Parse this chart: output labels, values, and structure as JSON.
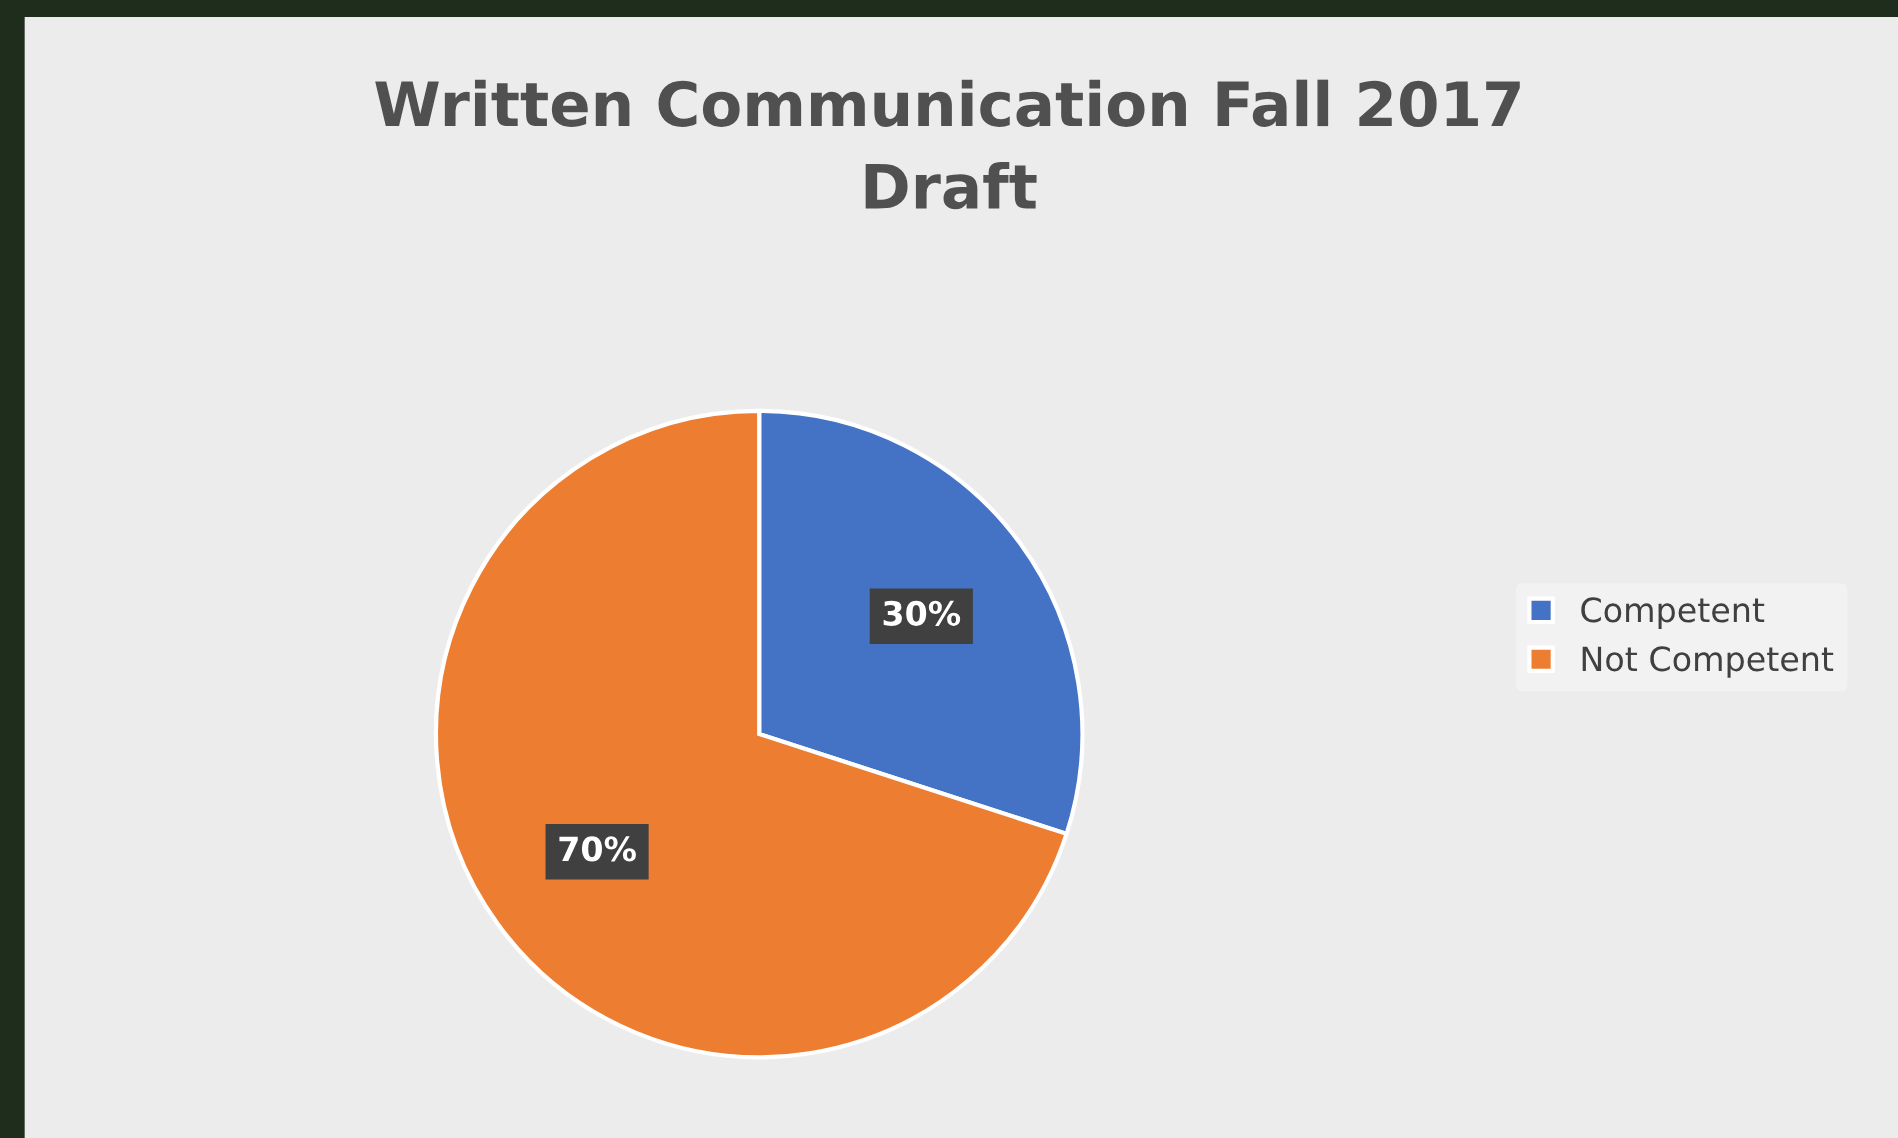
{
  "chart_data": {
    "type": "pie",
    "title": "Written Communication Fall 2017\nDraft",
    "categories": [
      "Competent",
      "Not Competent"
    ],
    "values": [
      30,
      70
    ],
    "value_labels": [
      "30%",
      "70%"
    ],
    "colors": [
      "#4472c4",
      "#ed7d31"
    ],
    "legend": "right"
  }
}
